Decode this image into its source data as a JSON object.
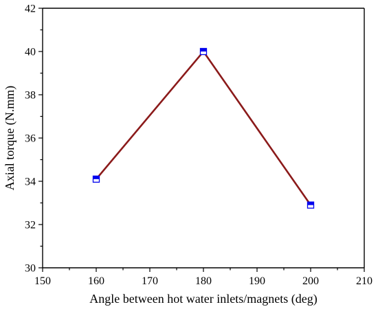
{
  "chart_data": {
    "type": "line",
    "title": "",
    "xlabel": "Angle between hot water inlets/magnets (deg)",
    "ylabel": "Axial torque (N.mm)",
    "xlim": [
      150,
      210
    ],
    "ylim": [
      30,
      42
    ],
    "xticks": [
      150,
      160,
      170,
      180,
      190,
      200,
      210
    ],
    "yticks": [
      30,
      32,
      34,
      36,
      38,
      40,
      42
    ],
    "grid": false,
    "legend": "none",
    "series": [
      {
        "x": [
          160,
          180,
          200
        ],
        "y": [
          34.1,
          40.0,
          32.9
        ],
        "line_color": "#8b1a1a",
        "marker": "half-filled-square",
        "marker_color": "#0000ee"
      }
    ]
  }
}
